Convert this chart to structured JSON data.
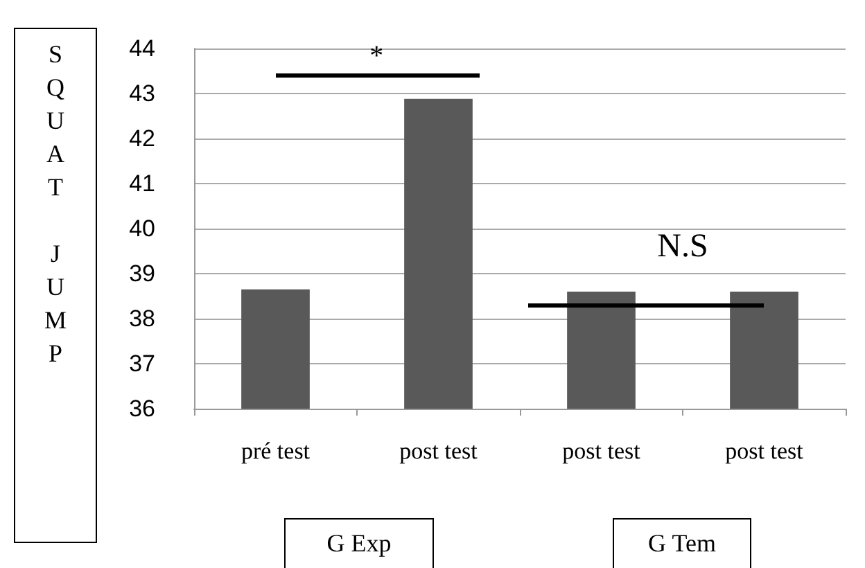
{
  "chart_data": {
    "type": "bar",
    "ylabel": "SQUAT JUMP",
    "categories": [
      "pré test",
      "post test",
      "post test",
      "post test"
    ],
    "values": [
      38.65,
      42.88,
      38.6,
      38.6
    ],
    "color": "#595959",
    "ylim": [
      36,
      44
    ],
    "yticks": [
      36,
      37,
      38,
      39,
      40,
      41,
      42,
      43,
      44
    ],
    "grid": "y",
    "annotations": [
      "*",
      "N.S",
      "G Exp",
      "G Tem"
    ]
  }
}
